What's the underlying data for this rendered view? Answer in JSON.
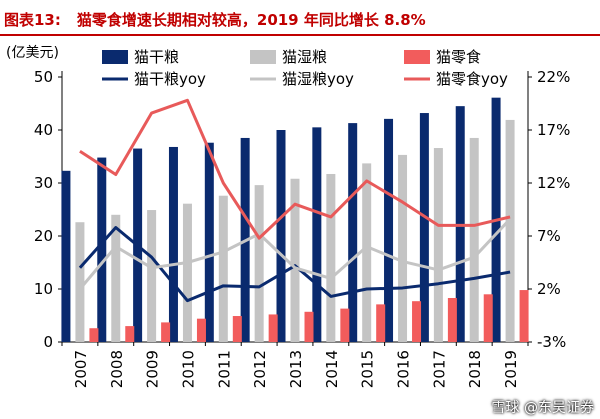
{
  "figure": {
    "label": "图表13:",
    "title": "猫零食增速长期相对较高，2019 年同比增长 8.8%"
  },
  "watermark": "雪球 @东吴证券",
  "chart_data": {
    "type": "bar",
    "categories": [
      "2007",
      "2008",
      "2009",
      "2010",
      "2011",
      "2012",
      "2013",
      "2014",
      "2015",
      "2016",
      "2017",
      "2018",
      "2019"
    ],
    "left_axis": {
      "unit_label": "(亿美元)",
      "ylim": [
        0,
        50
      ],
      "ticks": [
        "0",
        "10",
        "20",
        "30",
        "40",
        "50"
      ]
    },
    "right_axis": {
      "ylim": [
        -3,
        22
      ],
      "ticks": [
        "-3%",
        "2%",
        "7%",
        "12%",
        "17%",
        "22%"
      ]
    },
    "colors": {
      "dry": "#0a2a6e",
      "wet": "#c4c4c4",
      "snack": "#f25c5c",
      "dry_yoy": "#0a2a6e",
      "wet_yoy": "#c4c4c4",
      "snack_yoy": "#e85a5a"
    },
    "bar_series": [
      {
        "key": "dry",
        "name": "猫干粮",
        "values": [
          32.3,
          34.8,
          36.5,
          36.8,
          37.6,
          38.5,
          40.0,
          40.5,
          41.3,
          42.1,
          43.2,
          44.5,
          46.1
        ]
      },
      {
        "key": "wet",
        "name": "猫湿粮",
        "values": [
          22.6,
          24.0,
          24.9,
          26.1,
          27.6,
          29.6,
          30.8,
          31.7,
          33.7,
          35.3,
          36.6,
          38.5,
          41.9
        ]
      },
      {
        "key": "snack",
        "name": "猫零食",
        "values": [
          2.6,
          3.0,
          3.7,
          4.4,
          4.9,
          5.2,
          5.7,
          6.3,
          7.1,
          7.7,
          8.3,
          9.0,
          9.8
        ]
      }
    ],
    "line_series": [
      {
        "key": "dry_yoy",
        "name": "猫干粮yoy",
        "values": [
          4.0,
          7.8,
          5.0,
          0.9,
          2.3,
          2.2,
          4.2,
          1.3,
          2.0,
          2.1,
          2.5,
          3.0,
          3.6
        ]
      },
      {
        "key": "wet_yoy",
        "name": "猫湿粮yoy",
        "values": [
          2.0,
          6.0,
          4.0,
          4.5,
          5.5,
          7.2,
          4.0,
          3.0,
          6.0,
          4.6,
          3.8,
          5.0,
          8.6
        ]
      },
      {
        "key": "snack_yoy",
        "name": "猫零食yoy",
        "values": [
          15.0,
          12.8,
          18.6,
          19.8,
          12.0,
          6.8,
          10.0,
          8.8,
          12.2,
          10.2,
          8.0,
          8.0,
          8.8
        ]
      }
    ]
  }
}
